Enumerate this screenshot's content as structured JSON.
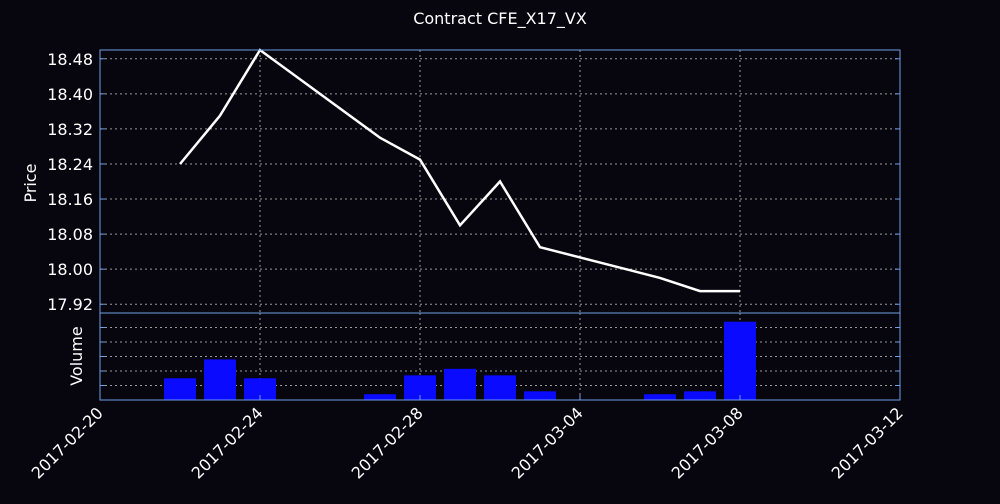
{
  "chart_data": {
    "type": "line",
    "title": "Contract CFE_X17_VX",
    "price": {
      "ylabel": "Price",
      "ylim": [
        17.9,
        18.5
      ],
      "yticks": [
        "17.92",
        "18.00",
        "18.08",
        "18.16",
        "18.24",
        "18.32",
        "18.40",
        "18.48"
      ],
      "dates": [
        "2017-02-22",
        "2017-02-23",
        "2017-02-24",
        "2017-02-27",
        "2017-02-28",
        "2017-03-01",
        "2017-03-02",
        "2017-03-03",
        "2017-03-06",
        "2017-03-07",
        "2017-03-08"
      ],
      "values": [
        18.24,
        18.35,
        18.5,
        18.3,
        18.25,
        18.1,
        18.2,
        18.05,
        17.98,
        17.95,
        17.95
      ],
      "color": "#ffffff"
    },
    "volume": {
      "ylabel": "Volume",
      "dates": [
        "2017-02-22",
        "2017-02-23",
        "2017-02-24",
        "2017-02-27",
        "2017-02-28",
        "2017-03-01",
        "2017-03-02",
        "2017-03-03",
        "2017-03-06",
        "2017-03-07",
        "2017-03-08"
      ],
      "values": [
        3.0,
        5.6,
        3.0,
        0.8,
        3.4,
        4.3,
        3.4,
        1.2,
        0.8,
        1.2,
        10.8
      ],
      "ylim": [
        0,
        12
      ],
      "color": "#0a0aff"
    },
    "xlim": [
      "2017-02-20",
      "2017-03-12"
    ],
    "xticks": [
      "2017-02-20",
      "2017-02-24",
      "2017-02-28",
      "2017-03-04",
      "2017-03-08",
      "2017-03-12"
    ],
    "grid": true,
    "colors": {
      "background": "#07050e",
      "axes": "#6f9ee8",
      "grid": "#9a9a9a"
    }
  }
}
